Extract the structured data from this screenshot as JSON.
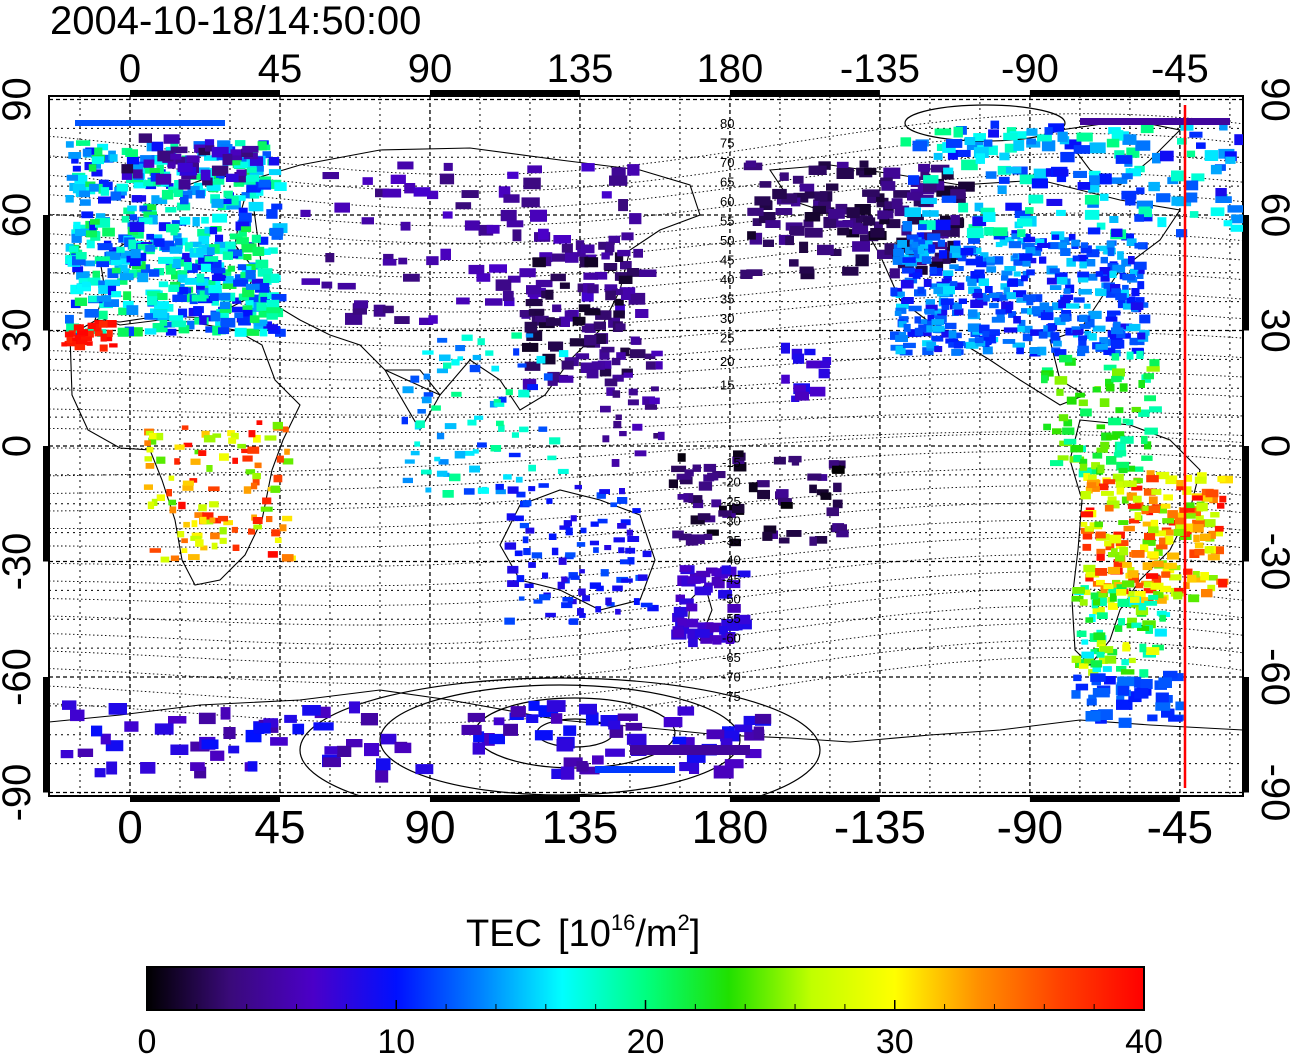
{
  "map": {
    "timestamp": "2004-10-18/14:50:00",
    "lon_ticks": [
      "0",
      "45",
      "90",
      "135",
      "180",
      "-135",
      "-90",
      "-45"
    ],
    "lat_ticks": [
      "90",
      "60",
      "30",
      "0",
      "-30",
      "-60",
      "-90"
    ],
    "contour_labels_north": [
      "80",
      "75",
      "70",
      "65",
      "60",
      "55",
      "50",
      "45",
      "40",
      "35",
      "30",
      "25",
      "20",
      "15"
    ],
    "contour_labels_south": [
      "-15",
      "-20",
      "-25",
      "-30",
      "-35",
      "-40",
      "-45",
      "-50",
      "-55",
      "-60",
      "-65",
      "-70",
      "-75"
    ],
    "meridian_marker_color": "#ff0000",
    "colorbar": {
      "title": "TEC",
      "unit_open": "[10",
      "unit_exp": "16",
      "unit_mid": "/m",
      "unit_exp2": "2",
      "unit_close": "]",
      "ticks": [
        "0",
        "10",
        "20",
        "30",
        "40"
      ],
      "colors": [
        "#000000",
        "#3a0a7a",
        "#4b00c8",
        "#0010ff",
        "#0080ff",
        "#00ffff",
        "#00ff80",
        "#20e000",
        "#c0ff00",
        "#ffff00",
        "#ff9000",
        "#ff4000",
        "#ff0000"
      ]
    }
  }
}
